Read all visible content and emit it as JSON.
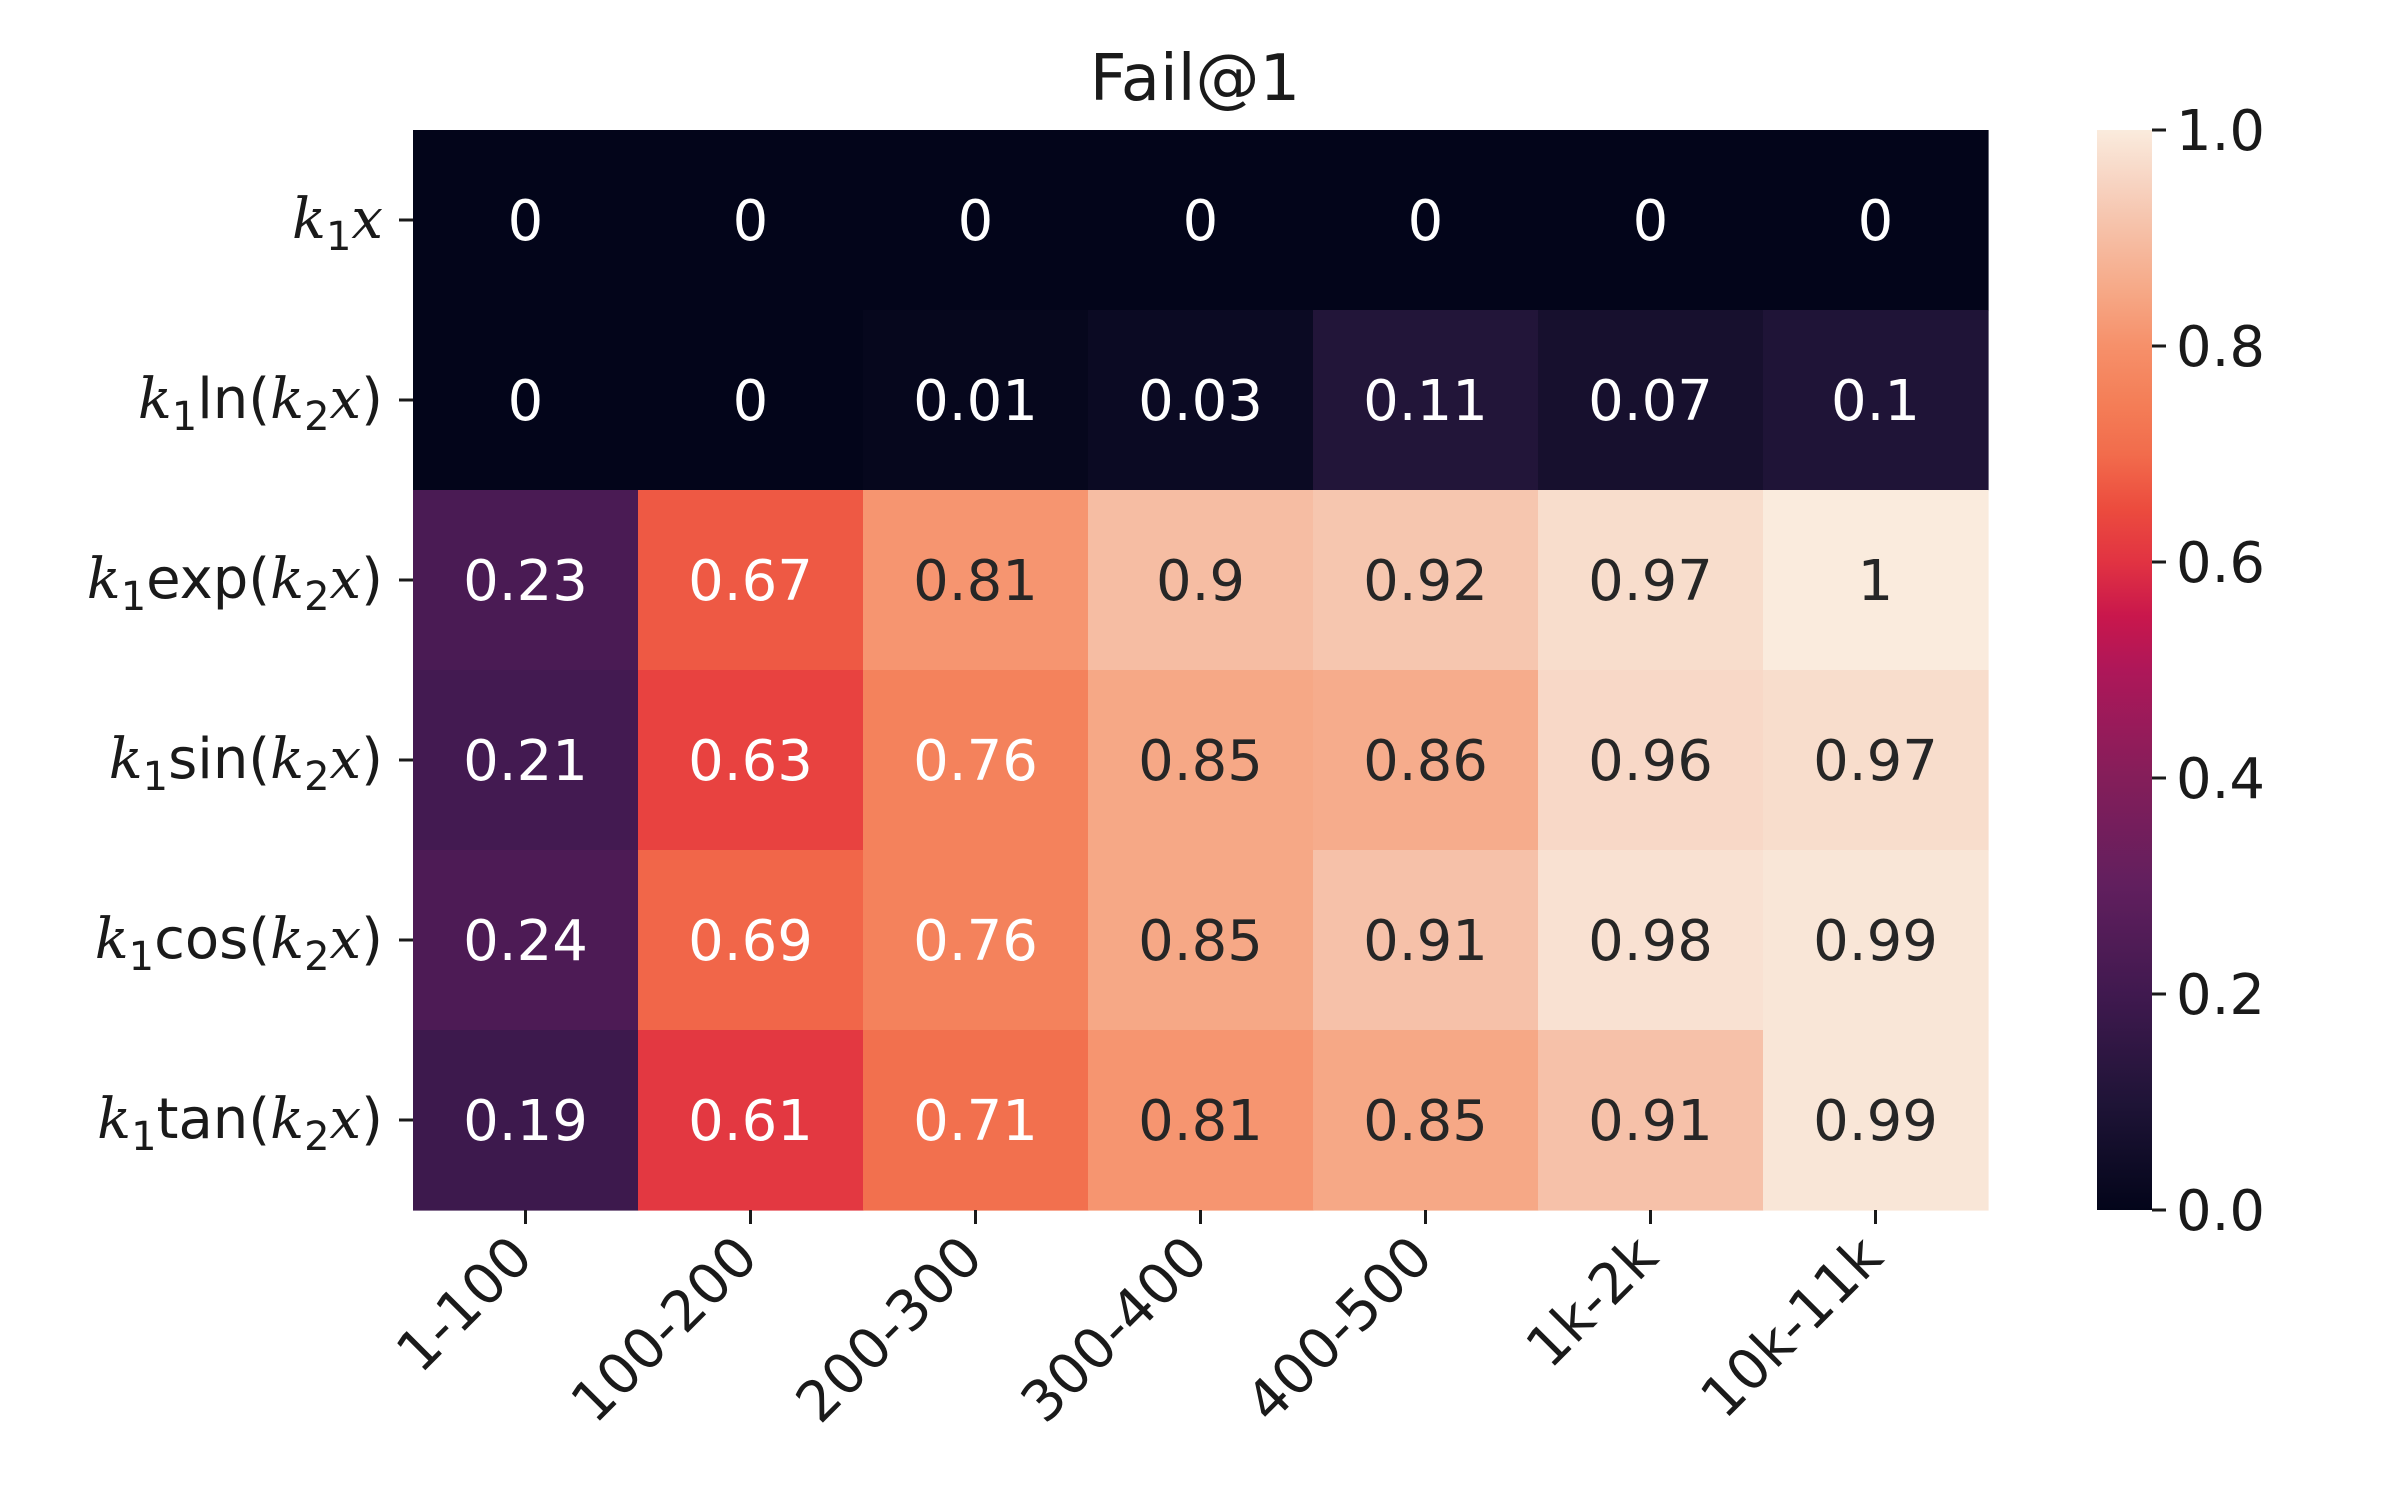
{
  "chart_data": {
    "type": "heatmap",
    "title": "Fail@1",
    "x_categories": [
      "1-100",
      "100-200",
      "200-300",
      "300-400",
      "400-500",
      "1k-2k",
      "10k-11k"
    ],
    "y_categories": [
      {
        "id": "k1x",
        "parts": [
          [
            "k",
            "it"
          ],
          [
            "1",
            "sub"
          ],
          [
            "x",
            "it"
          ]
        ]
      },
      {
        "id": "k1ln",
        "parts": [
          [
            "k",
            "it"
          ],
          [
            "1",
            "sub"
          ],
          [
            "ln(",
            ""
          ],
          [
            "k",
            "it"
          ],
          [
            "2",
            "sub"
          ],
          [
            "x",
            "it"
          ],
          [
            ")",
            ""
          ]
        ]
      },
      {
        "id": "k1exp",
        "parts": [
          [
            "k",
            "it"
          ],
          [
            "1",
            "sub"
          ],
          [
            "exp(",
            ""
          ],
          [
            "k",
            "it"
          ],
          [
            "2",
            "sub"
          ],
          [
            "x",
            "it"
          ],
          [
            ")",
            ""
          ]
        ]
      },
      {
        "id": "k1sin",
        "parts": [
          [
            "k",
            "it"
          ],
          [
            "1",
            "sub"
          ],
          [
            "sin(",
            ""
          ],
          [
            "k",
            "it"
          ],
          [
            "2",
            "sub"
          ],
          [
            "x",
            "it"
          ],
          [
            ")",
            ""
          ]
        ]
      },
      {
        "id": "k1cos",
        "parts": [
          [
            "k",
            "it"
          ],
          [
            "1",
            "sub"
          ],
          [
            "cos(",
            ""
          ],
          [
            "k",
            "it"
          ],
          [
            "2",
            "sub"
          ],
          [
            "x",
            "it"
          ],
          [
            ")",
            ""
          ]
        ]
      },
      {
        "id": "k1tan",
        "parts": [
          [
            "k",
            "it"
          ],
          [
            "1",
            "sub"
          ],
          [
            "tan(",
            ""
          ],
          [
            "k",
            "it"
          ],
          [
            "2",
            "sub"
          ],
          [
            "x",
            "it"
          ],
          [
            ")",
            ""
          ]
        ]
      }
    ],
    "values": [
      [
        0,
        0,
        0,
        0,
        0,
        0,
        0
      ],
      [
        0,
        0,
        0.01,
        0.03,
        0.11,
        0.07,
        0.1
      ],
      [
        0.23,
        0.67,
        0.81,
        0.9,
        0.92,
        0.97,
        1
      ],
      [
        0.21,
        0.63,
        0.76,
        0.85,
        0.86,
        0.96,
        0.97
      ],
      [
        0.24,
        0.69,
        0.76,
        0.85,
        0.91,
        0.98,
        0.99
      ],
      [
        0.19,
        0.61,
        0.71,
        0.81,
        0.85,
        0.91,
        0.99
      ]
    ],
    "value_labels": [
      [
        "0",
        "0",
        "0",
        "0",
        "0",
        "0",
        "0"
      ],
      [
        "0",
        "0",
        "0.01",
        "0.03",
        "0.11",
        "0.07",
        "0.1"
      ],
      [
        "0.23",
        "0.67",
        "0.81",
        "0.9",
        "0.92",
        "0.97",
        "1"
      ],
      [
        "0.21",
        "0.63",
        "0.76",
        "0.85",
        "0.86",
        "0.96",
        "0.97"
      ],
      [
        "0.24",
        "0.69",
        "0.76",
        "0.85",
        "0.91",
        "0.98",
        "0.99"
      ],
      [
        "0.19",
        "0.61",
        "0.71",
        "0.81",
        "0.85",
        "0.91",
        "0.99"
      ]
    ],
    "colorbar": {
      "range": [
        0.0,
        1.0
      ],
      "ticks": [
        "0.0",
        "0.2",
        "0.4",
        "0.6",
        "0.8",
        "1.0"
      ],
      "colormap": "rocket",
      "stops": [
        [
          0.0,
          "#03051a"
        ],
        [
          0.1,
          "#1f1437"
        ],
        [
          0.2,
          "#40194f"
        ],
        [
          0.3,
          "#611f5e"
        ],
        [
          0.4,
          "#841e5a"
        ],
        [
          0.5,
          "#ae1759"
        ],
        [
          0.55,
          "#c9174c"
        ],
        [
          0.6,
          "#e13342"
        ],
        [
          0.65,
          "#ec4c3e"
        ],
        [
          0.7,
          "#f26c4c"
        ],
        [
          0.75,
          "#f47f58"
        ],
        [
          0.8,
          "#f6906a"
        ],
        [
          0.85,
          "#f6a886"
        ],
        [
          0.9,
          "#f6bda3"
        ],
        [
          0.95,
          "#f7d3c1"
        ],
        [
          1.0,
          "#faebdd"
        ]
      ]
    },
    "grid": false
  }
}
